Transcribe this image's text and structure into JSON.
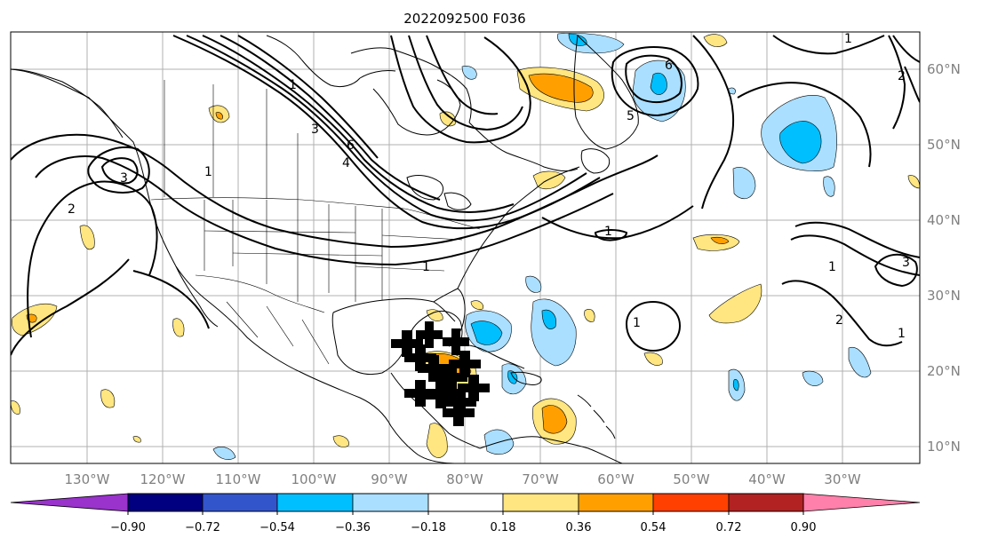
{
  "map": {
    "title": "2022092500 F036",
    "lon_labels": [
      "130°W",
      "120°W",
      "110°W",
      "100°W",
      "90°W",
      "80°W",
      "70°W",
      "60°W",
      "50°W",
      "40°W",
      "30°W"
    ],
    "lat_labels": [
      "60°N",
      "50°N",
      "40°N",
      "30°N",
      "20°N",
      "10°N"
    ],
    "contour_labels": [
      "1",
      "2",
      "3",
      "3",
      "4",
      "5",
      "6",
      "6",
      "1",
      "1",
      "1",
      "1",
      "2",
      "2",
      "3",
      "1",
      "1",
      "1"
    ]
  },
  "colorbar": {
    "ticks": [
      "−0.90",
      "−0.72",
      "−0.54",
      "−0.36",
      "−0.18",
      "0.18",
      "0.36",
      "0.54",
      "0.72",
      "0.90"
    ],
    "colors": [
      "#9933cc",
      "#000080",
      "#3355cc",
      "#00bfff",
      "#aadfff",
      "#ffffff",
      "#ffe680",
      "#ffa000",
      "#ff4000",
      "#b22222",
      "#ff80aa"
    ]
  },
  "shading_colors": {
    "light_blue": "#aadfff",
    "blue": "#00bfff",
    "yellow": "#ffe680",
    "orange": "#ffa000"
  }
}
